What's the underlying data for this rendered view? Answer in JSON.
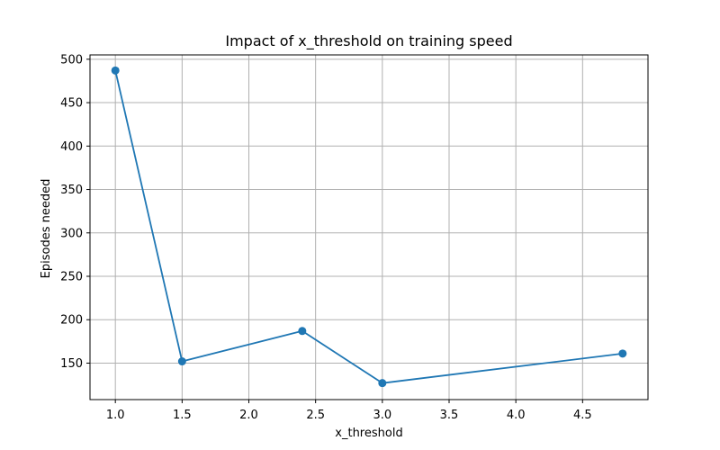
{
  "chart_data": {
    "type": "line",
    "title": "Impact of x_threshold on training speed",
    "xlabel": "x_threshold",
    "ylabel": "Episodes needed",
    "x": [
      1.0,
      1.5,
      2.4,
      3.0,
      4.8
    ],
    "series": [
      {
        "values": [
          487,
          152,
          187,
          127,
          161
        ],
        "color": "#1f77b4",
        "marker": "circle"
      }
    ],
    "xlim": [
      0.81,
      4.99
    ],
    "ylim": [
      108.0,
      505.0
    ],
    "xticks": [
      1.0,
      1.5,
      2.0,
      2.5,
      3.0,
      3.5,
      4.0,
      4.5
    ],
    "xtick_labels": [
      "1.0",
      "1.5",
      "2.0",
      "2.5",
      "3.0",
      "3.5",
      "4.0",
      "4.5"
    ],
    "yticks": [
      150,
      200,
      250,
      300,
      350,
      400,
      450,
      500
    ],
    "ytick_labels": [
      "150",
      "200",
      "250",
      "300",
      "350",
      "400",
      "450",
      "500"
    ],
    "grid": true
  }
}
